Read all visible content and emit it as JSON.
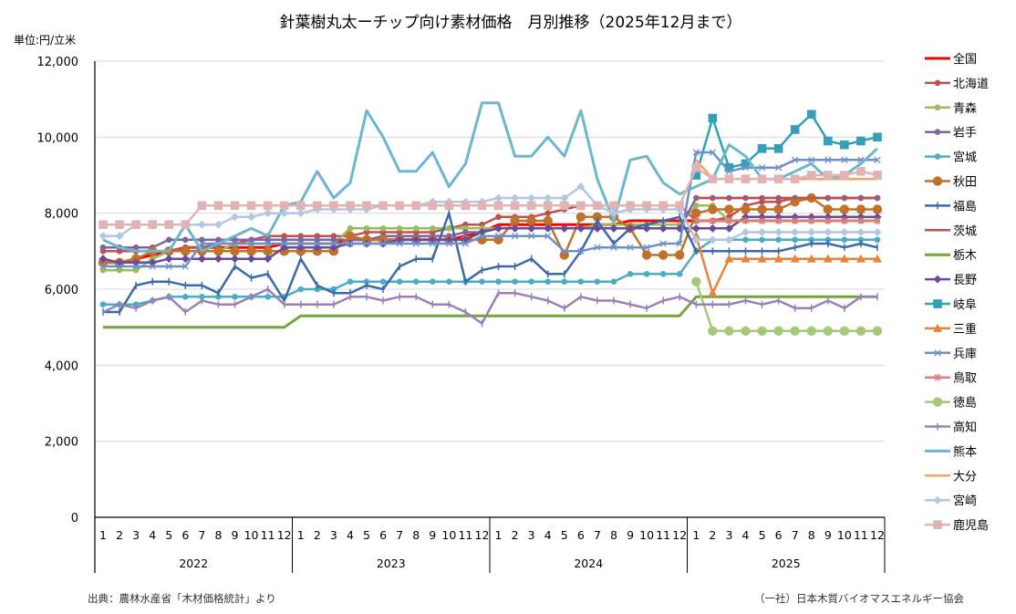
{
  "chart_data": {
    "type": "line",
    "title": "針葉樹丸太ーチップ向け素材価格　月別推移（2025年12月まで）",
    "unit_label": "単位:円/立米",
    "ylim": [
      0,
      12000
    ],
    "yticks": [
      0,
      2000,
      4000,
      6000,
      8000,
      10000,
      12000
    ],
    "ytick_labels": [
      "0",
      "2,000",
      "4,000",
      "6,000",
      "8,000",
      "10,000",
      "12,000"
    ],
    "grid": true,
    "legend_position": "right",
    "years": [
      "2022",
      "2023",
      "2024",
      "2025"
    ],
    "months": [
      "1",
      "2",
      "3",
      "4",
      "5",
      "6",
      "7",
      "8",
      "9",
      "10",
      "11",
      "12"
    ],
    "source": "出典：農林水産省「木材価格統計」より",
    "credit": "（一社）日本木質バイオマスエネルギー協会",
    "series": [
      {
        "name": "全国",
        "color": "#ff0000",
        "marker": "none",
        "width": 3,
        "values": [
          6700,
          6700,
          6800,
          6900,
          7000,
          7100,
          7100,
          7100,
          7100,
          7100,
          7100,
          7200,
          7200,
          7200,
          7200,
          7300,
          7300,
          7300,
          7300,
          7300,
          7300,
          7300,
          7400,
          7500,
          7700,
          7700,
          7700,
          7700,
          7700,
          7700,
          7700,
          7700,
          7800,
          7800,
          7800,
          7800,
          7800,
          7800,
          7800,
          7800,
          7800,
          7800,
          7800,
          7800,
          7800,
          7800,
          7800,
          7800
        ]
      },
      {
        "name": "北海道",
        "color": "#c0504d",
        "marker": "circle",
        "width": 2.5,
        "values": [
          7000,
          7000,
          7000,
          7000,
          7000,
          7100,
          7100,
          7200,
          7200,
          7300,
          7400,
          7400,
          7400,
          7400,
          7400,
          7400,
          7500,
          7500,
          7500,
          7500,
          7500,
          7600,
          7700,
          7700,
          7900,
          7900,
          7900,
          8000,
          8100,
          8200,
          8200,
          8200,
          8200,
          8200,
          8200,
          8200,
          7800,
          7800,
          7900,
          8200,
          8300,
          8300,
          8400,
          8400,
          8400,
          8400,
          8400,
          8400
        ]
      },
      {
        "name": "青森",
        "color": "#9bbb59",
        "marker": "circle",
        "width": 2.5,
        "values": [
          6500,
          6500,
          6500,
          6800,
          7000,
          7000,
          7000,
          7000,
          7200,
          7200,
          7200,
          7200,
          7200,
          7200,
          7200,
          7600,
          7600,
          7600,
          7600,
          7600,
          7600,
          7600,
          7600,
          7600,
          7600,
          7600,
          7600,
          7600,
          7600,
          7600,
          7700,
          7700,
          7700,
          7700,
          7700,
          7700,
          8200,
          8200,
          7800,
          7800,
          7800,
          7800,
          7800,
          7800,
          7800,
          7800,
          7800,
          7800
        ]
      },
      {
        "name": "岩手",
        "color": "#8064a2",
        "marker": "circle",
        "width": 2.5,
        "values": [
          7100,
          7100,
          7100,
          7100,
          7300,
          7300,
          7300,
          7300,
          7300,
          7300,
          7300,
          7300,
          7300,
          7300,
          7300,
          7300,
          7300,
          7400,
          7400,
          7400,
          7400,
          7400,
          7500,
          7500,
          7600,
          7600,
          7600,
          7600,
          7600,
          7600,
          7600,
          7600,
          7600,
          7600,
          7600,
          7600,
          8400,
          8400,
          8400,
          8400,
          8400,
          8400,
          8400,
          8400,
          8400,
          8400,
          8400,
          8400
        ]
      },
      {
        "name": "宮城",
        "color": "#4bacc6",
        "marker": "circle",
        "width": 2.5,
        "values": [
          5600,
          5600,
          5600,
          5700,
          5800,
          5800,
          5800,
          5800,
          5800,
          5800,
          5800,
          5800,
          6000,
          6000,
          6000,
          6200,
          6200,
          6200,
          6200,
          6200,
          6200,
          6200,
          6200,
          6200,
          6200,
          6200,
          6200,
          6200,
          6200,
          6200,
          6200,
          6200,
          6400,
          6400,
          6400,
          6400,
          7000,
          7300,
          7300,
          7300,
          7300,
          7300,
          7300,
          7300,
          7300,
          7300,
          7300,
          7300
        ]
      },
      {
        "name": "秋田",
        "color": "#c0722a",
        "marker": "bigcircle",
        "width": 2.5,
        "values": [
          6700,
          6700,
          6800,
          7000,
          7000,
          7000,
          7000,
          7000,
          7000,
          7000,
          7000,
          7000,
          7000,
          7000,
          7000,
          7400,
          7300,
          7300,
          7300,
          7300,
          7300,
          7300,
          7300,
          7300,
          7300,
          7800,
          7800,
          7800,
          6900,
          7900,
          7900,
          7900,
          7600,
          6900,
          6900,
          6900,
          8000,
          8100,
          8100,
          8100,
          8100,
          8100,
          8300,
          8400,
          8100,
          8100,
          8100,
          8100
        ]
      },
      {
        "name": "福島",
        "color": "#3a6aaa",
        "marker": "plus",
        "width": 2.5,
        "values": [
          5400,
          5400,
          6100,
          6200,
          6200,
          6100,
          6100,
          5900,
          6600,
          6300,
          6400,
          5700,
          6800,
          6100,
          5900,
          5900,
          6100,
          6000,
          6600,
          6800,
          6800,
          8000,
          6200,
          6500,
          6600,
          6600,
          6800,
          6400,
          6400,
          7000,
          7800,
          7200,
          7600,
          7700,
          7800,
          7900,
          7000,
          7000,
          7000,
          7000,
          7000,
          7000,
          7100,
          7200,
          7200,
          7100,
          7200,
          7100
        ]
      },
      {
        "name": "茨城",
        "color": "#c0504d",
        "marker": "none",
        "width": 2.5,
        "values": [
          null,
          null,
          null,
          null,
          null,
          null,
          null,
          null,
          null,
          null,
          null,
          null,
          null,
          null,
          null,
          null,
          null,
          null,
          null,
          null,
          null,
          null,
          null,
          null,
          null,
          null,
          null,
          null,
          null,
          null,
          null,
          null,
          null,
          null,
          null,
          null,
          8400,
          8400,
          8400,
          8400,
          8400,
          8400,
          8400,
          8400,
          8400,
          8400,
          8400,
          8400
        ]
      },
      {
        "name": "栃木",
        "color": "#77a33d",
        "marker": "none",
        "width": 3,
        "values": [
          5000,
          5000,
          5000,
          5000,
          5000,
          5000,
          5000,
          5000,
          5000,
          5000,
          5000,
          5000,
          5300,
          5300,
          5300,
          5300,
          5300,
          5300,
          5300,
          5300,
          5300,
          5300,
          5300,
          5300,
          5300,
          5300,
          5300,
          5300,
          5300,
          5300,
          5300,
          5300,
          5300,
          5300,
          5300,
          5300,
          5800,
          5800,
          5800,
          5800,
          5800,
          5800,
          5800,
          5800,
          5800,
          5800,
          5800,
          5800
        ]
      },
      {
        "name": "長野",
        "color": "#6b4a9a",
        "marker": "diamond",
        "width": 2.5,
        "values": [
          6800,
          6700,
          6700,
          6700,
          6800,
          6800,
          6800,
          6800,
          6800,
          6800,
          6800,
          7100,
          7100,
          7100,
          7100,
          7200,
          7200,
          7200,
          7300,
          7300,
          7300,
          7300,
          7300,
          7500,
          7600,
          7600,
          7600,
          7600,
          7600,
          7600,
          7600,
          7600,
          7600,
          7600,
          7600,
          7600,
          7600,
          7600,
          7600,
          7900,
          7900,
          7900,
          7900,
          7900,
          7900,
          7900,
          7900,
          7900
        ]
      },
      {
        "name": "岐阜",
        "color": "#31a0b8",
        "marker": "square",
        "width": 2.5,
        "values": [
          null,
          null,
          null,
          null,
          null,
          null,
          null,
          null,
          null,
          null,
          null,
          null,
          null,
          null,
          null,
          null,
          null,
          null,
          null,
          null,
          null,
          null,
          null,
          null,
          null,
          null,
          null,
          null,
          null,
          null,
          null,
          null,
          null,
          null,
          null,
          null,
          9000,
          10500,
          9200,
          9300,
          9700,
          9700,
          10200,
          10600,
          9900,
          9800,
          9900,
          10000
        ]
      },
      {
        "name": "三重",
        "color": "#e8833a",
        "marker": "triangle",
        "width": 2.5,
        "values": [
          null,
          null,
          null,
          null,
          null,
          null,
          null,
          null,
          null,
          null,
          null,
          null,
          null,
          null,
          null,
          null,
          null,
          null,
          null,
          null,
          null,
          null,
          null,
          null,
          null,
          null,
          null,
          null,
          null,
          null,
          null,
          null,
          null,
          null,
          null,
          null,
          7400,
          5900,
          6800,
          6800,
          6800,
          6800,
          6800,
          6800,
          6800,
          6800,
          6800,
          6800
        ]
      },
      {
        "name": "兵庫",
        "color": "#6f8fc8",
        "marker": "x",
        "width": 2.5,
        "values": [
          6600,
          6600,
          6600,
          6600,
          6600,
          6600,
          7200,
          7200,
          7200,
          7200,
          7200,
          7200,
          7200,
          7200,
          7200,
          7200,
          7200,
          7200,
          7200,
          7200,
          7200,
          7200,
          7200,
          7400,
          7400,
          7400,
          7400,
          7400,
          7000,
          7000,
          7100,
          7100,
          7100,
          7100,
          7200,
          7200,
          9600,
          9600,
          9100,
          9200,
          9200,
          9200,
          9400,
          9400,
          9400,
          9400,
          9400,
          9400
        ]
      },
      {
        "name": "鳥取",
        "color": "#d98080",
        "marker": "star",
        "width": 2.5,
        "values": [
          null,
          null,
          null,
          null,
          null,
          null,
          null,
          null,
          null,
          null,
          null,
          null,
          null,
          null,
          null,
          null,
          null,
          null,
          null,
          null,
          null,
          null,
          null,
          null,
          null,
          null,
          null,
          null,
          null,
          null,
          null,
          null,
          null,
          null,
          null,
          null,
          7800,
          7800,
          7800,
          7800,
          7800,
          7800,
          7800,
          7800,
          7800,
          7800,
          7800,
          7800
        ]
      },
      {
        "name": "徳島",
        "color": "#a5c87a",
        "marker": "bigcircle",
        "width": 2.5,
        "values": [
          null,
          null,
          null,
          null,
          null,
          null,
          null,
          null,
          null,
          null,
          null,
          null,
          null,
          null,
          null,
          null,
          null,
          null,
          null,
          null,
          null,
          null,
          null,
          null,
          null,
          null,
          null,
          null,
          null,
          null,
          null,
          null,
          null,
          null,
          null,
          null,
          6200,
          4900,
          4900,
          4900,
          4900,
          4900,
          4900,
          4900,
          4900,
          4900,
          4900,
          4900
        ]
      },
      {
        "name": "高知",
        "color": "#9a80b8",
        "marker": "plus",
        "width": 2.5,
        "values": [
          5400,
          5600,
          5500,
          5700,
          5800,
          5400,
          5700,
          5600,
          5600,
          5800,
          6000,
          5600,
          5600,
          5600,
          5600,
          5800,
          5800,
          5700,
          5800,
          5800,
          5600,
          5600,
          5400,
          5100,
          5900,
          5900,
          5800,
          5700,
          5500,
          5800,
          5700,
          5700,
          5600,
          5500,
          5700,
          5800,
          5600,
          5600,
          5600,
          5700,
          5600,
          5700,
          5500,
          5500,
          5700,
          5500,
          5800,
          5800
        ]
      },
      {
        "name": "熊本",
        "color": "#6bb7cf",
        "marker": "none",
        "width": 3,
        "values": [
          7300,
          7100,
          7000,
          7000,
          7000,
          7700,
          7000,
          7200,
          7400,
          7600,
          7400,
          8200,
          8300,
          9100,
          8400,
          8800,
          10700,
          10000,
          9100,
          9100,
          9600,
          8700,
          9300,
          10900,
          10900,
          9500,
          9500,
          10000,
          9500,
          10700,
          8900,
          7800,
          9400,
          9500,
          8800,
          8500,
          8700,
          8900,
          9800,
          9500,
          8900,
          8900,
          9100,
          9300,
          8900,
          9000,
          9300,
          9700
        ]
      },
      {
        "name": "大分",
        "color": "#f4a266",
        "marker": "none",
        "width": 2.5,
        "values": [
          null,
          null,
          null,
          null,
          null,
          null,
          null,
          null,
          null,
          null,
          null,
          null,
          null,
          null,
          null,
          null,
          null,
          null,
          null,
          null,
          null,
          null,
          null,
          null,
          null,
          null,
          null,
          null,
          null,
          null,
          null,
          null,
          null,
          null,
          null,
          null,
          9400,
          8900,
          8900,
          8900,
          8900,
          8900,
          8900,
          8900,
          8900,
          8900,
          8900,
          8900
        ]
      },
      {
        "name": "宮崎",
        "color": "#b4c6e0",
        "marker": "diamond",
        "width": 2.5,
        "values": [
          7400,
          7400,
          7700,
          7700,
          7700,
          7700,
          7700,
          7700,
          7900,
          7900,
          8000,
          8000,
          8000,
          8100,
          8100,
          8100,
          8100,
          8200,
          8200,
          8200,
          8300,
          8300,
          8300,
          8300,
          8400,
          8400,
          8400,
          8400,
          8400,
          8700,
          8200,
          8000,
          8100,
          8100,
          8100,
          8100,
          7300,
          7300,
          7300,
          7500,
          7500,
          7500,
          7500,
          7500,
          7500,
          7500,
          7500,
          7500
        ]
      },
      {
        "name": "鹿児島",
        "color": "#e0b4b4",
        "marker": "square",
        "width": 2.5,
        "values": [
          7700,
          7700,
          7700,
          7700,
          7700,
          7700,
          8200,
          8200,
          8200,
          8200,
          8200,
          8200,
          8200,
          8200,
          8200,
          8200,
          8200,
          8200,
          8200,
          8200,
          8200,
          8200,
          8200,
          8200,
          8200,
          8200,
          8200,
          8200,
          8200,
          8200,
          8200,
          8200,
          8200,
          8200,
          8200,
          8200,
          9200,
          8900,
          8900,
          8900,
          8900,
          8900,
          8900,
          9000,
          9000,
          9000,
          9100,
          9000
        ]
      }
    ]
  }
}
